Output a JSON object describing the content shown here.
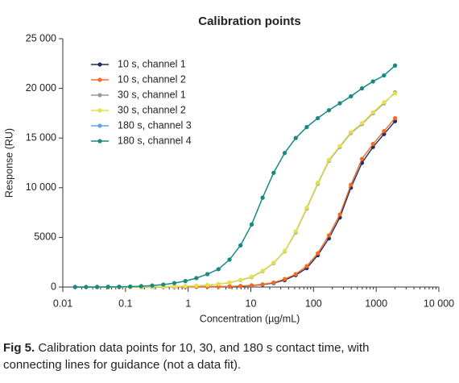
{
  "chart_data": {
    "type": "line",
    "title": "Calibration points",
    "x_label": "Concentration (µg/mL)",
    "y_label": "Response (RU)",
    "log_x": true,
    "legend": "upper left",
    "x": [
      0.0157,
      0.0235,
      0.0352,
      0.0528,
      0.0792,
      0.119,
      0.178,
      0.267,
      0.401,
      0.601,
      0.902,
      1.35,
      2.03,
      3.04,
      4.57,
      6.85,
      10.3,
      15.4,
      23.1,
      34.7,
      52.0,
      78.0,
      117,
      176,
      263,
      395,
      593,
      889,
      1333,
      2000
    ],
    "series": [
      {
        "name": "10 s, channel 1",
        "color": "#1f2d6b",
        "values": [
          0,
          0,
          0,
          0,
          0,
          0,
          0,
          5,
          10,
          15,
          20,
          30,
          40,
          50,
          50,
          90,
          150,
          250,
          400,
          700,
          1200,
          1900,
          3200,
          4900,
          7000,
          10000,
          12500,
          14100,
          15400,
          16700
        ]
      },
      {
        "name": "10 s, channel 2",
        "color": "#f26b21",
        "values": [
          0,
          0,
          0,
          0,
          0,
          0,
          0,
          5,
          10,
          15,
          20,
          30,
          40,
          50,
          60,
          100,
          170,
          280,
          450,
          800,
          1300,
          2100,
          3400,
          5200,
          7300,
          10300,
          12900,
          14400,
          15700,
          17000
        ]
      },
      {
        "name": "30 s, channel 1",
        "color": "#9a9a9a",
        "values": [
          0,
          0,
          0,
          0,
          0,
          5,
          10,
          20,
          30,
          50,
          80,
          130,
          200,
          300,
          450,
          700,
          1000,
          1600,
          2400,
          3600,
          5500,
          7900,
          10400,
          12700,
          14100,
          15500,
          16400,
          17500,
          18500,
          19600
        ]
      },
      {
        "name": "30 s, channel 2",
        "color": "#e6e04a",
        "values": [
          0,
          0,
          0,
          0,
          0,
          5,
          10,
          20,
          30,
          50,
          80,
          130,
          200,
          300,
          460,
          720,
          1050,
          1650,
          2450,
          3650,
          5600,
          8000,
          10500,
          12800,
          14200,
          15600,
          16500,
          17600,
          18600,
          19500
        ]
      },
      {
        "name": "180 s, channel 3",
        "color": "#5aa9e6",
        "values": [
          0,
          0,
          10,
          20,
          30,
          50,
          90,
          150,
          250,
          400,
          600,
          900,
          1300,
          1800,
          2760,
          4200,
          6300,
          9000,
          11500,
          13500,
          15000,
          16100,
          17000,
          17800,
          18500,
          19200,
          20000,
          20700,
          21300,
          22300
        ]
      },
      {
        "name": "180 s, channel 4",
        "color": "#1a8a7f",
        "values": [
          0,
          0,
          10,
          20,
          30,
          50,
          90,
          150,
          250,
          400,
          600,
          900,
          1300,
          1800,
          2760,
          4200,
          6300,
          9000,
          11500,
          13500,
          15000,
          16100,
          17000,
          17800,
          18500,
          19200,
          20000,
          20700,
          21300,
          22300
        ]
      }
    ],
    "xlim": [
      0.01,
      10000
    ],
    "xticks": [
      0.01,
      0.1,
      1,
      10,
      100,
      1000,
      {
        "value": 10000,
        "label": "10 000"
      }
    ],
    "ylim": [
      0,
      25000
    ],
    "yticks": [
      0,
      5000,
      {
        "value": 10000,
        "label": "10 000"
      },
      {
        "value": 15000,
        "label": "15 000"
      },
      {
        "value": 20000,
        "label": "20 000"
      },
      {
        "value": 25000,
        "label": "25 000"
      }
    ],
    "caption_label": "Fig 5.",
    "caption": "Calibration data points for 10, 30, and 180 s contact time, with connecting lines for guidance (not a data fit)."
  }
}
